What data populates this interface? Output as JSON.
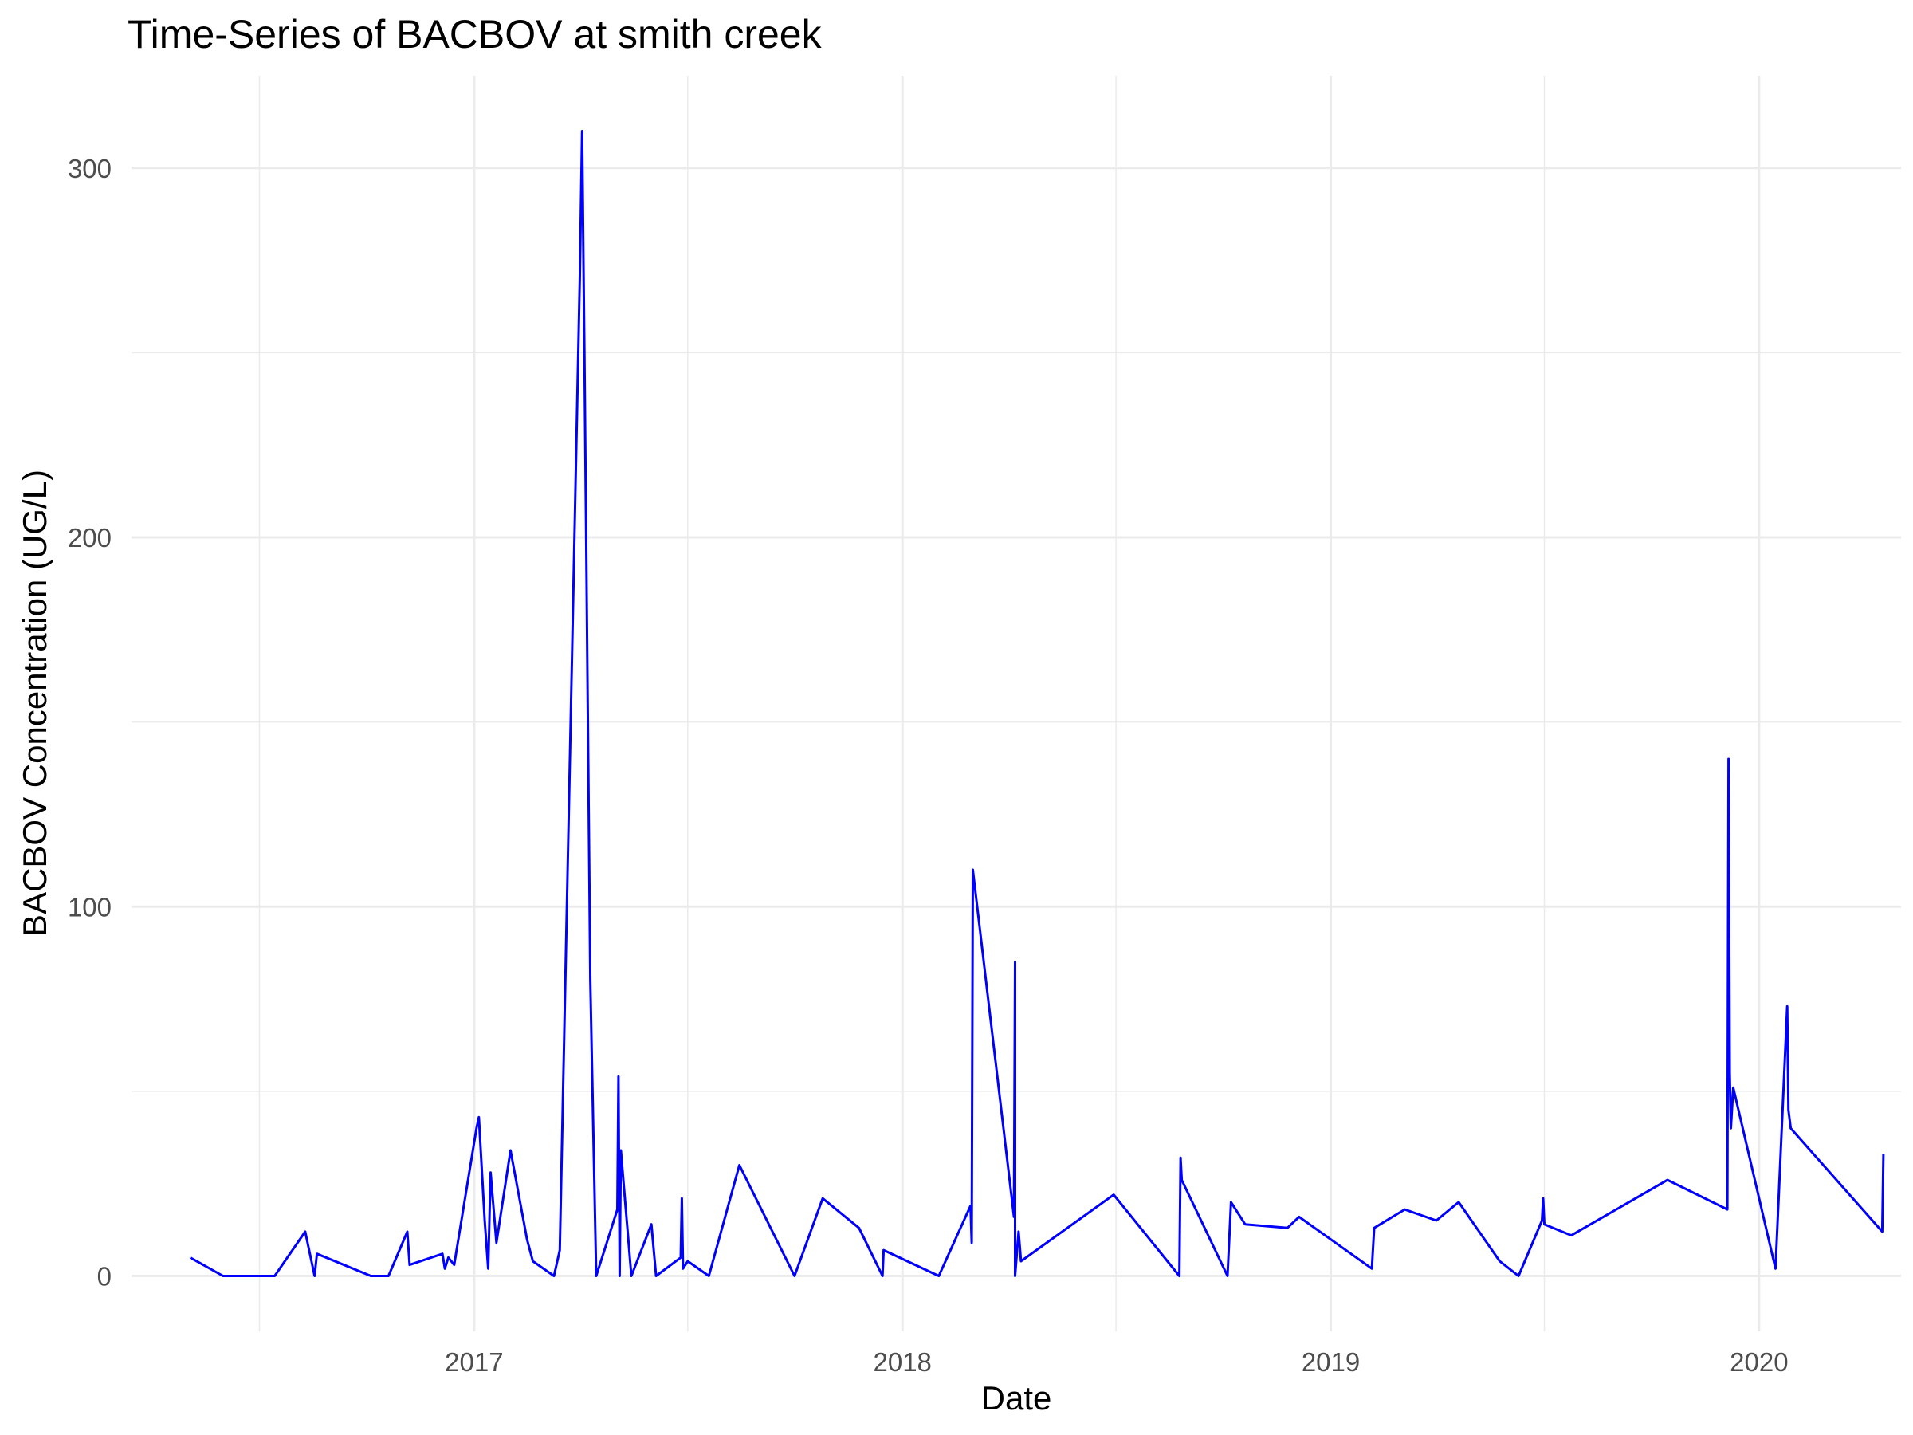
{
  "chart_data": {
    "type": "line",
    "title": "Time-Series of BACBOV at smith creek",
    "xlabel": "Date",
    "ylabel": "BACBOV Concentration (UG/L)",
    "x_ticks": [
      "2017",
      "2018",
      "2019",
      "2020"
    ],
    "y_ticks": [
      "0",
      "100",
      "200",
      "300"
    ],
    "xlim": [
      "2016-03-15",
      "2020-05-01"
    ],
    "ylim": [
      -15,
      325
    ],
    "grid": true,
    "legend": "none",
    "series": [
      {
        "color": "#0000ff",
        "points": [
          [
            "2016-05-04",
            5
          ],
          [
            "2016-06-01",
            0
          ],
          [
            "2016-07-15",
            0
          ],
          [
            "2016-08-10",
            12
          ],
          [
            "2016-08-18",
            0
          ],
          [
            "2016-08-20",
            6
          ],
          [
            "2016-10-05",
            0
          ],
          [
            "2016-10-20",
            0
          ],
          [
            "2016-11-05",
            12
          ],
          [
            "2016-11-07",
            3
          ],
          [
            "2016-12-05",
            6
          ],
          [
            "2016-12-07",
            2
          ],
          [
            "2016-12-10",
            5
          ],
          [
            "2016-12-15",
            3
          ],
          [
            "2017-01-03",
            40
          ],
          [
            "2017-01-05",
            43
          ],
          [
            "2017-01-10",
            15
          ],
          [
            "2017-01-13",
            2
          ],
          [
            "2017-01-15",
            28
          ],
          [
            "2017-01-20",
            9
          ],
          [
            "2017-02-01",
            34
          ],
          [
            "2017-02-15",
            10
          ],
          [
            "2017-02-20",
            4
          ],
          [
            "2017-03-10",
            0
          ],
          [
            "2017-03-15",
            7
          ],
          [
            "2017-04-01",
            270
          ],
          [
            "2017-04-03",
            310
          ],
          [
            "2017-04-05",
            250
          ],
          [
            "2017-04-10",
            80
          ],
          [
            "2017-04-15",
            0
          ],
          [
            "2017-05-03",
            18
          ],
          [
            "2017-05-04",
            54
          ],
          [
            "2017-05-05",
            0
          ],
          [
            "2017-05-06",
            34
          ],
          [
            "2017-05-15",
            0
          ],
          [
            "2017-06-01",
            14
          ],
          [
            "2017-06-05",
            0
          ],
          [
            "2017-06-26",
            5
          ],
          [
            "2017-06-27",
            21
          ],
          [
            "2017-06-28",
            2
          ],
          [
            "2017-07-02",
            4
          ],
          [
            "2017-07-20",
            0
          ],
          [
            "2017-08-15",
            30
          ],
          [
            "2017-10-01",
            0
          ],
          [
            "2017-10-25",
            21
          ],
          [
            "2017-11-25",
            13
          ],
          [
            "2017-12-15",
            0
          ],
          [
            "2017-12-16",
            7
          ],
          [
            "2018-02-01",
            0
          ],
          [
            "2018-02-28",
            19
          ],
          [
            "2018-03-01",
            9
          ],
          [
            "2018-03-02",
            110
          ],
          [
            "2018-04-06",
            16
          ],
          [
            "2018-04-07",
            85
          ],
          [
            "2018-04-07",
            0
          ],
          [
            "2018-04-10",
            12
          ],
          [
            "2018-04-12",
            4
          ],
          [
            "2018-06-30",
            22
          ],
          [
            "2018-08-25",
            0
          ],
          [
            "2018-08-26",
            32
          ],
          [
            "2018-08-27",
            26
          ],
          [
            "2018-10-05",
            0
          ],
          [
            "2018-10-08",
            20
          ],
          [
            "2018-10-20",
            14
          ],
          [
            "2018-11-25",
            13
          ],
          [
            "2018-12-05",
            16
          ],
          [
            "2019-02-05",
            2
          ],
          [
            "2019-02-07",
            13
          ],
          [
            "2019-03-05",
            18
          ],
          [
            "2019-04-01",
            15
          ],
          [
            "2019-04-20",
            20
          ],
          [
            "2019-05-25",
            4
          ],
          [
            "2019-06-10",
            0
          ],
          [
            "2019-06-30",
            15
          ],
          [
            "2019-07-01",
            21
          ],
          [
            "2019-07-02",
            14
          ],
          [
            "2019-07-25",
            11
          ],
          [
            "2019-10-15",
            26
          ],
          [
            "2019-12-05",
            18
          ],
          [
            "2019-12-06",
            140
          ],
          [
            "2019-12-07",
            55
          ],
          [
            "2019-12-08",
            40
          ],
          [
            "2019-12-10",
            51
          ],
          [
            "2020-01-15",
            2
          ],
          [
            "2020-01-25",
            73
          ],
          [
            "2020-01-26",
            45
          ],
          [
            "2020-01-28",
            40
          ],
          [
            "2020-04-15",
            12
          ],
          [
            "2020-04-16",
            33
          ]
        ]
      }
    ]
  }
}
